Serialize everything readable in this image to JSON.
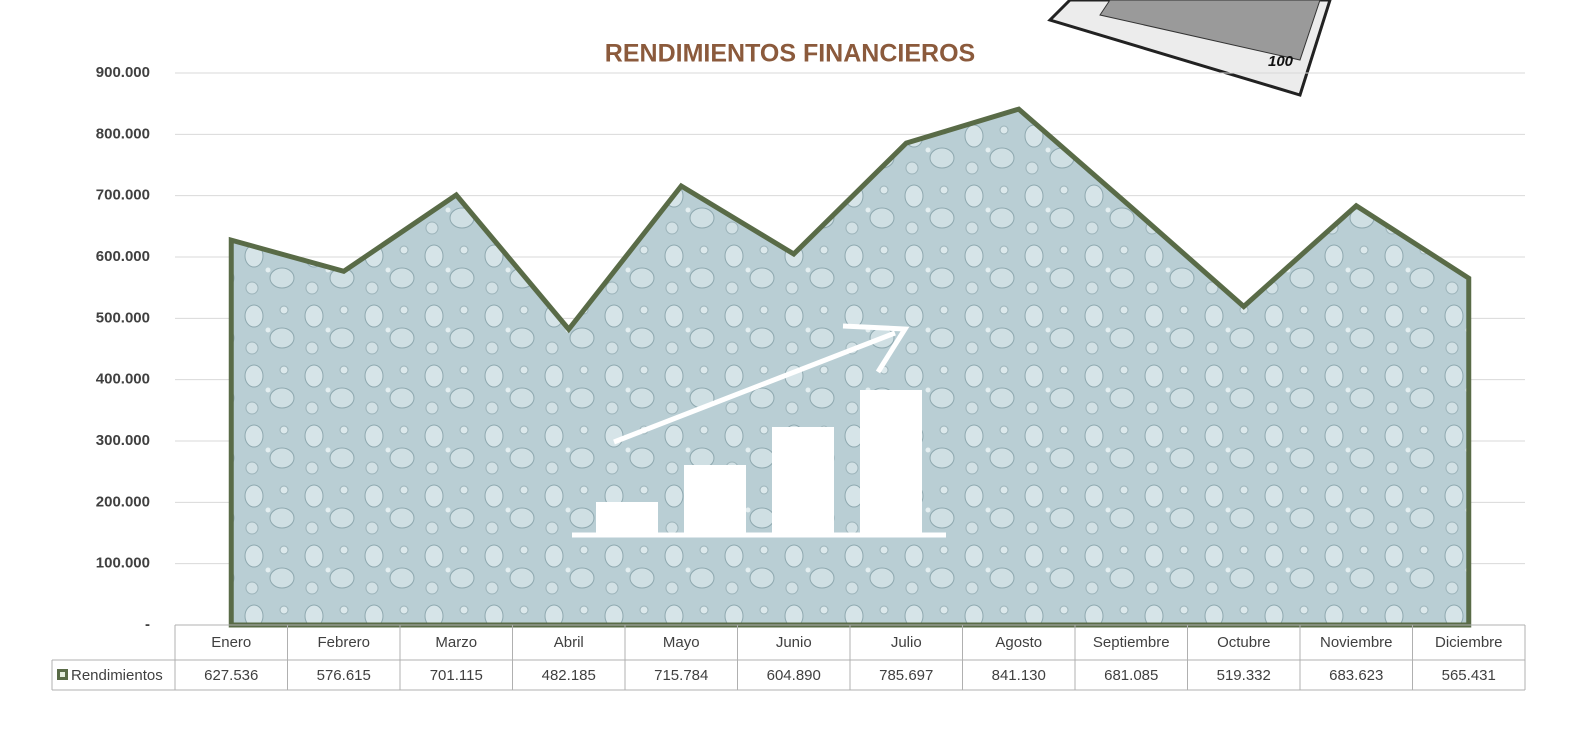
{
  "chart_data": {
    "type": "area",
    "title": "RENDIMIENTOS FINANCIEROS",
    "categories": [
      "Enero",
      "Febrero",
      "Marzo",
      "Abril",
      "Mayo",
      "Junio",
      "Julio",
      "Agosto",
      "Septiembre",
      "Octubre",
      "Noviembre",
      "Diciembre"
    ],
    "series": [
      {
        "name": "Rendimientos",
        "color": "#596b47",
        "values": [
          627536,
          576615,
          701115,
          482185,
          715784,
          604890,
          785697,
          841130,
          681085,
          519332,
          683623,
          565431
        ],
        "value_labels": [
          "627.536",
          "576.615",
          "701.115",
          "482.185",
          "715.784",
          "604.890",
          "785.697",
          "841.130",
          "681.085",
          "519.332",
          "683.623",
          "565.431"
        ]
      }
    ],
    "ylim": [
      0,
      900000
    ],
    "yticks": [
      {
        "value": 0,
        "label": "-"
      },
      {
        "value": 100000,
        "label": "100.000"
      },
      {
        "value": 200000,
        "label": "200.000"
      },
      {
        "value": 300000,
        "label": "300.000"
      },
      {
        "value": 400000,
        "label": "400.000"
      },
      {
        "value": 500000,
        "label": "500.000"
      },
      {
        "value": 600000,
        "label": "600.000"
      },
      {
        "value": 700000,
        "label": "700.000"
      },
      {
        "value": 800000,
        "label": "800.000"
      },
      {
        "value": 900000,
        "label": "900.000"
      }
    ],
    "grid": true,
    "data_table": true
  }
}
